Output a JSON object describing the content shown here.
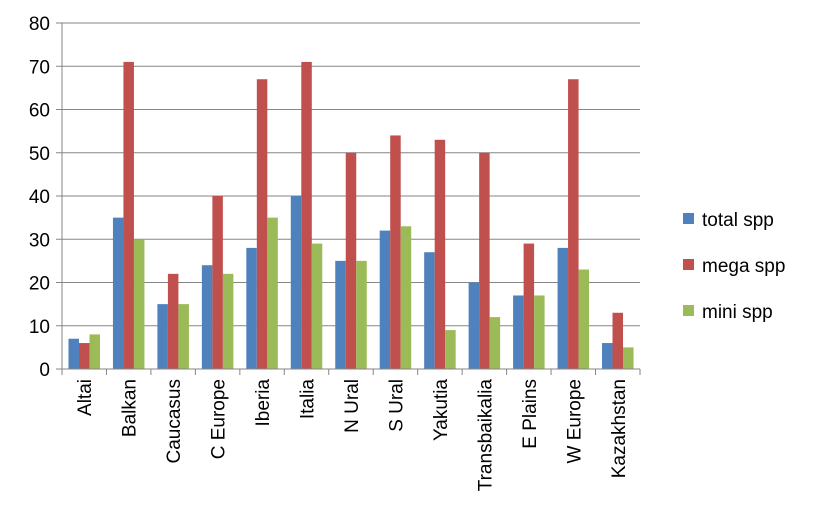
{
  "chart_data": {
    "type": "bar",
    "categories": [
      "Altai",
      "Balkan",
      "Caucasus",
      "C Europe",
      "Iberia",
      "Italia",
      "N Ural",
      "S Ural",
      "Yakutia",
      "Transbaikalia",
      "E Plains",
      "W Europe",
      "Kazakhstan"
    ],
    "series": [
      {
        "name": "total spp",
        "color": "#4F81BD",
        "values": [
          7,
          35,
          15,
          24,
          28,
          40,
          25,
          32,
          27,
          20,
          17,
          28,
          6
        ]
      },
      {
        "name": "mega spp",
        "color": "#C0504D",
        "values": [
          6,
          71,
          22,
          40,
          67,
          71,
          50,
          54,
          53,
          50,
          29,
          67,
          13
        ]
      },
      {
        "name": "mini spp",
        "color": "#9BBB59",
        "values": [
          8,
          30,
          15,
          22,
          35,
          29,
          25,
          33,
          9,
          12,
          17,
          23,
          5
        ]
      }
    ],
    "ylim": [
      0,
      80
    ],
    "yticks": [
      0,
      10,
      20,
      30,
      40,
      50,
      60,
      70,
      80
    ],
    "grid": true,
    "legend_position": "right"
  }
}
